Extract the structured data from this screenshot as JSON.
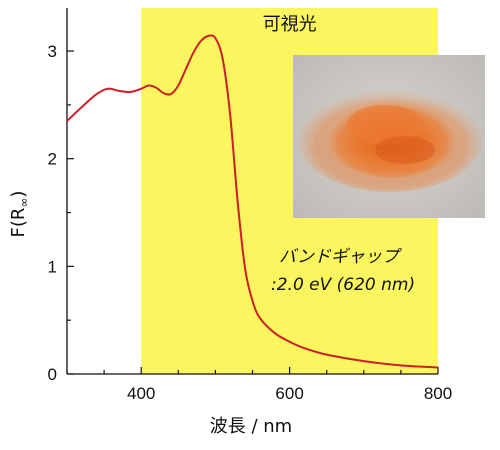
{
  "chart_data": {
    "type": "line",
    "title": "",
    "xlabel": "波長 / nm",
    "ylabel_main": "F(R",
    "ylabel_sub": "∞",
    "ylabel_close": ")",
    "xlim": [
      300,
      800
    ],
    "ylim": [
      0,
      3.4
    ],
    "xticks": [
      400,
      600,
      800
    ],
    "yticks": [
      0,
      1,
      2,
      3
    ],
    "grid": false,
    "legend": "none",
    "visible_region": {
      "label": "可視光",
      "x_start": 400,
      "x_end": 800,
      "color": "#fbf560"
    },
    "series": [
      {
        "color": "#cc1f27",
        "x": [
          300,
          320,
          340,
          355,
          370,
          385,
          400,
          410,
          420,
          430,
          440,
          450,
          460,
          470,
          480,
          490,
          500,
          510,
          520,
          530,
          540,
          550,
          560,
          580,
          600,
          620,
          650,
          700,
          750,
          800
        ],
        "y": [
          2.35,
          2.48,
          2.6,
          2.65,
          2.63,
          2.62,
          2.65,
          2.68,
          2.66,
          2.61,
          2.6,
          2.68,
          2.83,
          2.98,
          3.09,
          3.14,
          3.12,
          2.92,
          2.4,
          1.6,
          0.98,
          0.68,
          0.52,
          0.38,
          0.3,
          0.24,
          0.18,
          0.12,
          0.08,
          0.06
        ]
      }
    ],
    "annotation": {
      "line1": "バンドギャップ",
      "line2": ":2.0 eV (620 nm)"
    }
  },
  "photo": {
    "subject": "orange-powder-photo"
  }
}
